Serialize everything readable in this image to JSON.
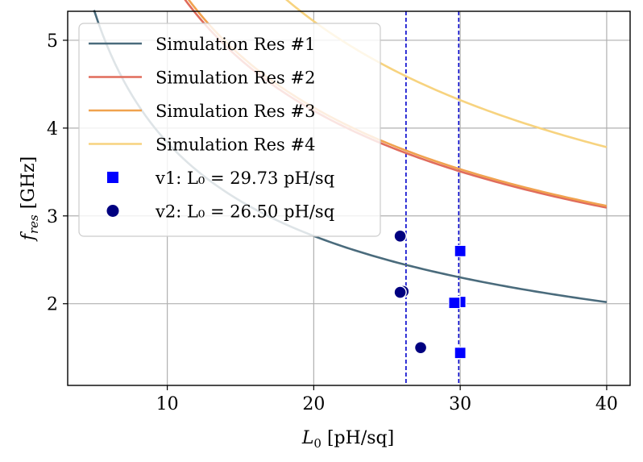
{
  "chart_data": {
    "type": "line",
    "title": "",
    "xlabel": "L₀ [pH/sq]",
    "ylabel": "f_res [GHz]",
    "xlim": [
      3.2,
      41.6
    ],
    "ylim": [
      1.07,
      5.33
    ],
    "xticks": [
      "10",
      "20",
      "30",
      "40"
    ],
    "yticks": [
      "2",
      "3",
      "4",
      "5"
    ],
    "grid": true,
    "legend_position": "top-left",
    "series": [
      {
        "name": "Simulation Res #1",
        "color": "#4a6b7c",
        "A": 11.5,
        "B": 0.2,
        "x_range": [
          5,
          40
        ]
      },
      {
        "name": "Simulation Res #2",
        "color": "#e06c5c",
        "A": 16.85,
        "B": 0.43,
        "x_range": [
          5,
          40
        ]
      },
      {
        "name": "Simulation Res #3",
        "color": "#f0a24f",
        "A": 17.1,
        "B": 0.41,
        "x_range": [
          5,
          40
        ]
      },
      {
        "name": "Simulation Res #4",
        "color": "#f7d37f",
        "A": 21.9,
        "B": 0.32,
        "x_range": [
          5,
          40
        ]
      }
    ],
    "markers": [
      {
        "name": "v1: L₀ = 29.73 pH/sq",
        "shape": "square",
        "color": "#0000ff",
        "points": [
          [
            30.0,
            1.44
          ],
          [
            30.0,
            2.02
          ],
          [
            30.0,
            2.6
          ],
          [
            29.6,
            2.01
          ]
        ]
      },
      {
        "name": "v2: L₀ = 26.50 pH/sq",
        "shape": "circle",
        "color": "#000080",
        "points": [
          [
            27.3,
            1.5
          ],
          [
            26.1,
            2.14
          ],
          [
            25.9,
            2.77
          ],
          [
            25.9,
            2.13
          ]
        ]
      }
    ],
    "vlines": [
      {
        "x": 26.3,
        "color": "#0000cc",
        "style": "dashed"
      },
      {
        "x": 29.9,
        "color": "#0000cc",
        "style": "dashed"
      }
    ]
  }
}
